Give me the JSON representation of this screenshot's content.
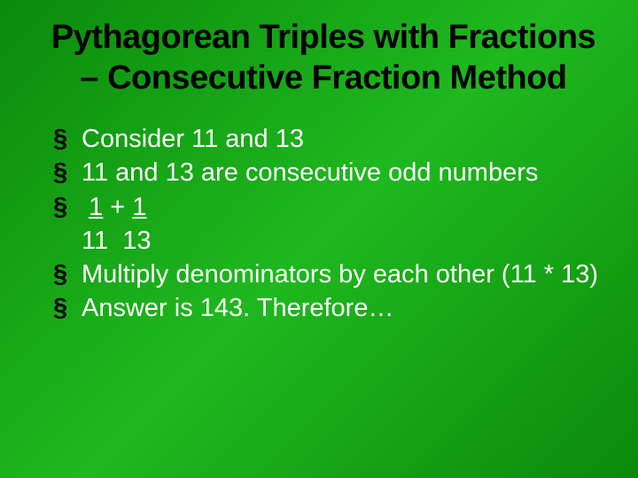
{
  "slide": {
    "title": "Pythagorean Triples with Fractions – Consecutive Fraction Method",
    "title_fontsize": 38,
    "title_color": "#000000",
    "body_fontsize": 29,
    "body_color": "#ffffff",
    "bullet_glyph": "§",
    "bullet_color": "#000000",
    "background_gradient": [
      "#0a8a0a",
      "#1fb81f",
      "#0a8a0a"
    ],
    "bullets": [
      "Consider 11 and 13",
      "11 and 13 are consecutive odd numbers",
      "",
      "Multiply denominators by each other (11 * 13)",
      "Answer is 143. Therefore…"
    ],
    "fraction": {
      "numerator_left": "1",
      "operator": "+",
      "numerator_right": "1",
      "denominator_left": "11",
      "denominator_right": "13"
    }
  }
}
